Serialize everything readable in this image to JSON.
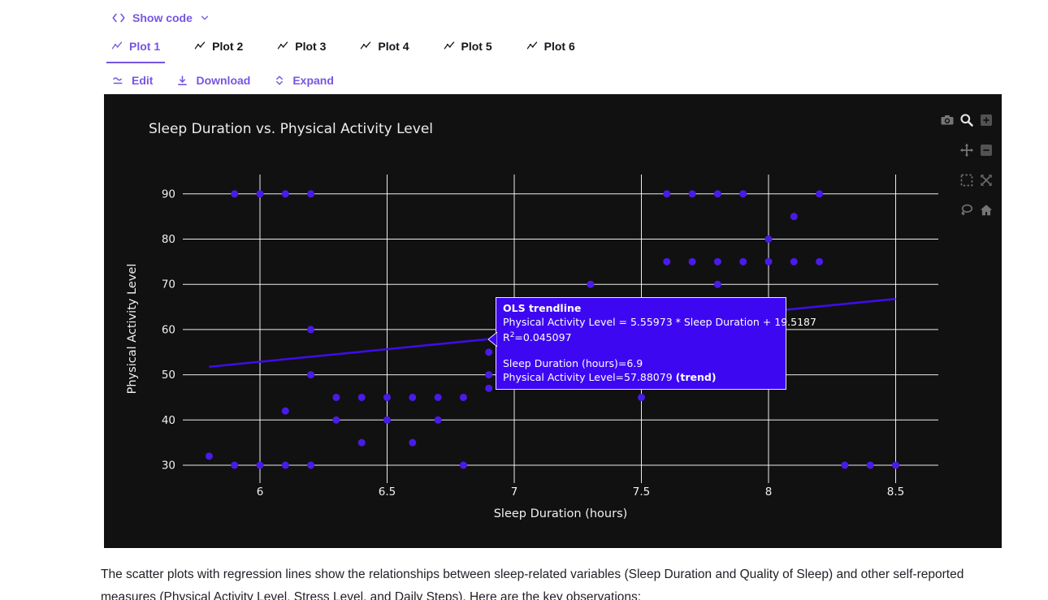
{
  "header": {
    "show_code_label": "Show code"
  },
  "tabs": {
    "items": [
      {
        "label": "Plot 1",
        "active": true
      },
      {
        "label": "Plot 2",
        "active": false
      },
      {
        "label": "Plot 3",
        "active": false
      },
      {
        "label": "Plot 4",
        "active": false
      },
      {
        "label": "Plot 5",
        "active": false
      },
      {
        "label": "Plot 6",
        "active": false
      }
    ]
  },
  "actions": {
    "edit": "Edit",
    "download": "Download",
    "expand": "Expand"
  },
  "colors": {
    "accent": "#7655e3",
    "chart_background": "#111111",
    "grid": "#ffffff",
    "marker": "#4a1be8",
    "trend": "#3c0ee8",
    "tooltip_background": "#3d07f2",
    "chart_text": "#f0f0f0"
  },
  "chart": {
    "title": "Sleep Duration vs. Physical Activity Level",
    "tooltip": {
      "title": "OLS trendline",
      "equation": "Physical Activity Level = 5.55973 * Sleep Duration + 19.5187",
      "r2_prefix": "R",
      "r2_sup": "2",
      "r2_value": "=0.045097",
      "x_line": "Sleep Duration (hours)=6.9",
      "trend_line": "Physical Activity Level=57.88079 ",
      "trend_suffix": "(trend)"
    },
    "modebar_buttons": [
      "camera",
      "zoom",
      "zoom-in",
      "pan",
      "zoom-out",
      "box-select",
      "autoscale",
      "lasso",
      "home"
    ],
    "modebar_active": "zoom"
  },
  "chart_data": {
    "type": "scatter",
    "title": "Sleep Duration vs. Physical Activity Level",
    "xlabel": "Sleep Duration (hours)",
    "ylabel": "Physical Activity Level",
    "x_ticks": [
      6,
      6.5,
      7,
      7.5,
      8,
      8.5
    ],
    "y_ticks": [
      30,
      40,
      50,
      60,
      70,
      80,
      90
    ],
    "xlim": [
      5.7,
      8.67
    ],
    "ylim": [
      26,
      94.3
    ],
    "grid": true,
    "legend": false,
    "points": [
      [
        5.8,
        32
      ],
      [
        5.9,
        30
      ],
      [
        6.0,
        30
      ],
      [
        6.1,
        30
      ],
      [
        6.2,
        30
      ],
      [
        6.8,
        30
      ],
      [
        8.3,
        30
      ],
      [
        8.4,
        30
      ],
      [
        8.5,
        30
      ],
      [
        6.4,
        35
      ],
      [
        6.6,
        35
      ],
      [
        6.3,
        40
      ],
      [
        6.5,
        40
      ],
      [
        6.7,
        40
      ],
      [
        6.1,
        42
      ],
      [
        6.3,
        45
      ],
      [
        6.4,
        45
      ],
      [
        6.5,
        45
      ],
      [
        6.6,
        45
      ],
      [
        6.7,
        45
      ],
      [
        6.8,
        45
      ],
      [
        7.5,
        45
      ],
      [
        6.9,
        47
      ],
      [
        6.2,
        50
      ],
      [
        6.9,
        50
      ],
      [
        6.9,
        55
      ],
      [
        6.2,
        60
      ],
      [
        7.3,
        70
      ],
      [
        7.8,
        70
      ],
      [
        7.6,
        75
      ],
      [
        7.7,
        75
      ],
      [
        7.8,
        75
      ],
      [
        7.9,
        75
      ],
      [
        8.0,
        75
      ],
      [
        8.1,
        75
      ],
      [
        8.2,
        75
      ],
      [
        8.0,
        80
      ],
      [
        8.1,
        85
      ],
      [
        5.9,
        90
      ],
      [
        6.0,
        90
      ],
      [
        6.1,
        90
      ],
      [
        6.2,
        90
      ],
      [
        7.6,
        90
      ],
      [
        7.7,
        90
      ],
      [
        7.8,
        90
      ],
      [
        7.9,
        90
      ],
      [
        8.2,
        90
      ]
    ],
    "trendline": {
      "name": "OLS trendline",
      "slope": 5.55973,
      "intercept": 19.5187,
      "x_start": 5.8,
      "x_end": 8.5,
      "r_squared": 0.045097
    },
    "hover_point": {
      "x": 6.9,
      "y": 57.88079
    }
  },
  "footer": {
    "paragraph": "The scatter plots with regression lines show the relationships between sleep-related variables (Sleep Duration and Quality of Sleep) and other self-reported measures (Physical Activity Level, Stress Level, and Daily Steps). Here are the key observations:"
  }
}
